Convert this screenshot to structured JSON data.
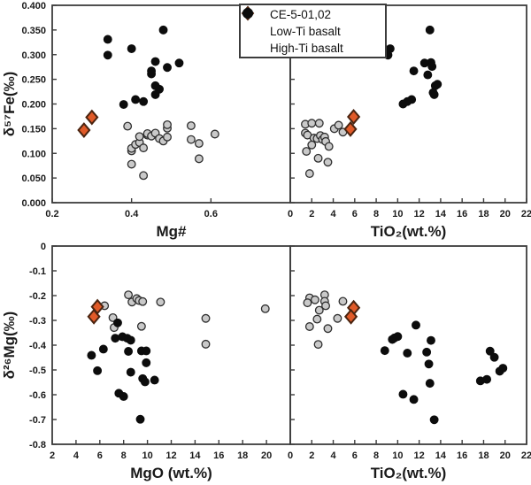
{
  "style": {
    "background": "#ffffff",
    "frame_color": "#3c3c3c",
    "text_color": "#1a1a1a"
  },
  "legend": {
    "items": [
      {
        "label": "CE-5-01,02",
        "marker": "diamond",
        "fill": "#e05a28",
        "stroke": "#4a2410"
      },
      {
        "label": "Low-Ti basalt",
        "marker": "circle",
        "fill": "#c9c9c9",
        "stroke": "#2e2e2e"
      },
      {
        "label": "High-Ti basalt",
        "marker": "circle",
        "fill": "#0c0c0c",
        "stroke": "#0c0c0c"
      }
    ]
  },
  "chart_data": [
    {
      "id": "top-left",
      "type": "scatter",
      "title": "",
      "xlabel": "Mg#",
      "ylabel": "δ⁵⁷Fe(‰)",
      "xlim": [
        0.2,
        0.8
      ],
      "ylim": [
        0,
        0.4
      ],
      "xticks": [
        0.2,
        0.4,
        0.6
      ],
      "xtick_labels": [
        "0.2",
        "0.4",
        "0.6"
      ],
      "yticks": [
        0,
        0.05,
        0.1,
        0.15,
        0.2,
        0.25,
        0.3,
        0.35,
        0.4
      ],
      "ytick_labels": [
        "0.000",
        "0.050",
        "0.100",
        "0.150",
        "0.200",
        "0.250",
        "0.300",
        "0.350",
        "0.400"
      ],
      "grid": false,
      "series": [
        {
          "name": "Low-Ti basalt",
          "marker": "circle",
          "points": [
            [
              0.39,
              0.155
            ],
            [
              0.4,
              0.105
            ],
            [
              0.4,
              0.11
            ],
            [
              0.41,
              0.118
            ],
            [
              0.42,
              0.122
            ],
            [
              0.42,
              0.134
            ],
            [
              0.43,
              0.111
            ],
            [
              0.44,
              0.137
            ],
            [
              0.44,
              0.14
            ],
            [
              0.45,
              0.135
            ],
            [
              0.46,
              0.141
            ],
            [
              0.47,
              0.13
            ],
            [
              0.48,
              0.125
            ],
            [
              0.49,
              0.133
            ],
            [
              0.49,
              0.151
            ],
            [
              0.49,
              0.158
            ],
            [
              0.55,
              0.156
            ],
            [
              0.55,
              0.128
            ],
            [
              0.57,
              0.12
            ],
            [
              0.57,
              0.089
            ],
            [
              0.61,
              0.139
            ],
            [
              0.4,
              0.078
            ],
            [
              0.43,
              0.055
            ]
          ]
        },
        {
          "name": "High-Ti basalt",
          "marker": "circle",
          "points": [
            [
              0.34,
              0.331
            ],
            [
              0.34,
              0.299
            ],
            [
              0.4,
              0.312
            ],
            [
              0.48,
              0.35
            ],
            [
              0.46,
              0.286
            ],
            [
              0.49,
              0.274
            ],
            [
              0.52,
              0.283
            ],
            [
              0.45,
              0.267
            ],
            [
              0.45,
              0.261
            ],
            [
              0.46,
              0.237
            ],
            [
              0.47,
              0.23
            ],
            [
              0.46,
              0.219
            ],
            [
              0.41,
              0.209
            ],
            [
              0.43,
              0.205
            ],
            [
              0.38,
              0.199
            ]
          ]
        },
        {
          "name": "CE-5-01,02",
          "marker": "diamond",
          "points": [
            [
              0.3,
              0.173
            ],
            [
              0.28,
              0.147
            ]
          ]
        }
      ]
    },
    {
      "id": "top-right",
      "type": "scatter",
      "title": "",
      "xlabel": "TiO₂(wt.%)",
      "ylabel": "",
      "xlim": [
        0,
        22
      ],
      "ylim": [
        0,
        0.4
      ],
      "xticks": [
        0,
        2,
        4,
        6,
        8,
        10,
        12,
        14,
        16,
        18,
        20,
        22
      ],
      "xtick_labels": [
        "0",
        "2",
        "4",
        "6",
        "8",
        "10",
        "12",
        "14",
        "16",
        "18",
        "20",
        "22"
      ],
      "yticks": [
        0,
        0.05,
        0.1,
        0.15,
        0.2,
        0.25,
        0.3,
        0.35,
        0.4
      ],
      "ytick_labels": [],
      "grid": false,
      "series": [
        {
          "name": "Low-Ti basalt",
          "marker": "circle",
          "points": [
            [
              1.4,
              0.159
            ],
            [
              2.0,
              0.161
            ],
            [
              2.7,
              0.161
            ],
            [
              4.1,
              0.15
            ],
            [
              4.5,
              0.157
            ],
            [
              4.9,
              0.143
            ],
            [
              1.4,
              0.141
            ],
            [
              1.6,
              0.137
            ],
            [
              2.2,
              0.131
            ],
            [
              2.5,
              0.13
            ],
            [
              2.8,
              0.136
            ],
            [
              3.0,
              0.128
            ],
            [
              3.2,
              0.133
            ],
            [
              3.3,
              0.124
            ],
            [
              3.6,
              0.114
            ],
            [
              2.0,
              0.117
            ],
            [
              1.5,
              0.104
            ],
            [
              2.6,
              0.09
            ],
            [
              3.5,
              0.082
            ],
            [
              1.8,
              0.059
            ]
          ]
        },
        {
          "name": "High-Ti basalt",
          "marker": "circle",
          "points": [
            [
              8.5,
              0.33
            ],
            [
              9.3,
              0.312
            ],
            [
              9.1,
              0.299
            ],
            [
              13.0,
              0.35
            ],
            [
              12.5,
              0.283
            ],
            [
              13.1,
              0.284
            ],
            [
              13.2,
              0.276
            ],
            [
              11.5,
              0.267
            ],
            [
              12.8,
              0.259
            ],
            [
              13.7,
              0.24
            ],
            [
              13.5,
              0.237
            ],
            [
              13.3,
              0.223
            ],
            [
              13.4,
              0.219
            ],
            [
              11.3,
              0.209
            ],
            [
              10.9,
              0.205
            ],
            [
              10.5,
              0.2
            ]
          ]
        },
        {
          "name": "CE-5-01,02",
          "marker": "diamond",
          "points": [
            [
              5.9,
              0.174
            ],
            [
              5.6,
              0.149
            ]
          ]
        }
      ]
    },
    {
      "id": "bottom-left",
      "type": "scatter",
      "title": "",
      "xlabel": "MgO (wt.%)",
      "ylabel": "δ²⁶Mg(‰)",
      "xlim": [
        2,
        22
      ],
      "ylim": [
        -0.8,
        0
      ],
      "xticks": [
        2,
        4,
        6,
        8,
        10,
        12,
        14,
        16,
        18,
        20
      ],
      "xtick_labels": [
        "2",
        "4",
        "6",
        "8",
        "10",
        "12",
        "14",
        "16",
        "18",
        "20"
      ],
      "yticks": [
        0,
        -0.1,
        -0.2,
        -0.3,
        -0.4,
        -0.5,
        -0.6,
        -0.7,
        -0.8
      ],
      "ytick_labels": [
        "0",
        "-0.1",
        "-0.2",
        "-0.3",
        "-0.4",
        "-0.5",
        "-0.6",
        "-0.7",
        "-0.8"
      ],
      "grid": false,
      "series": [
        {
          "name": "Low-Ti basalt",
          "marker": "circle",
          "points": [
            [
              6.4,
              -0.241
            ],
            [
              8.4,
              -0.197
            ],
            [
              8.7,
              -0.226
            ],
            [
              9.1,
              -0.212
            ],
            [
              9.3,
              -0.22
            ],
            [
              9.6,
              -0.224
            ],
            [
              11.1,
              -0.226
            ],
            [
              7.1,
              -0.289
            ],
            [
              7.2,
              -0.329
            ],
            [
              9.5,
              -0.324
            ],
            [
              14.9,
              -0.292
            ],
            [
              14.9,
              -0.396
            ],
            [
              19.9,
              -0.253
            ]
          ]
        },
        {
          "name": "High-Ti basalt",
          "marker": "circle",
          "points": [
            [
              7.5,
              -0.31
            ],
            [
              7.3,
              -0.372
            ],
            [
              7.9,
              -0.366
            ],
            [
              8.3,
              -0.372
            ],
            [
              8.6,
              -0.38
            ],
            [
              6.3,
              -0.416
            ],
            [
              5.3,
              -0.441
            ],
            [
              8.4,
              -0.425
            ],
            [
              9.5,
              -0.423
            ],
            [
              9.9,
              -0.423
            ],
            [
              9.9,
              -0.471
            ],
            [
              5.8,
              -0.503
            ],
            [
              8.6,
              -0.509
            ],
            [
              9.6,
              -0.535
            ],
            [
              9.8,
              -0.548
            ],
            [
              10.6,
              -0.541
            ],
            [
              7.6,
              -0.594
            ],
            [
              8.0,
              -0.607
            ],
            [
              9.4,
              -0.699
            ]
          ]
        },
        {
          "name": "CE-5-01,02",
          "marker": "diamond",
          "points": [
            [
              5.8,
              -0.245
            ],
            [
              5.5,
              -0.285
            ]
          ]
        }
      ]
    },
    {
      "id": "bottom-right",
      "type": "scatter",
      "title": "",
      "xlabel": "TiO₂(wt.%)",
      "ylabel": "",
      "xlim": [
        0,
        22
      ],
      "ylim": [
        -0.8,
        0
      ],
      "xticks": [
        0,
        2,
        4,
        6,
        8,
        10,
        12,
        14,
        16,
        18,
        20,
        22
      ],
      "xtick_labels": [
        "0",
        "2",
        "4",
        "6",
        "8",
        "10",
        "12",
        "14",
        "16",
        "18",
        "20",
        "22"
      ],
      "yticks": [
        0,
        -0.1,
        -0.2,
        -0.3,
        -0.4,
        -0.5,
        -0.6,
        -0.7,
        -0.8
      ],
      "ytick_labels": [],
      "grid": false,
      "series": [
        {
          "name": "Low-Ti basalt",
          "marker": "circle",
          "points": [
            [
              1.8,
              -0.209
            ],
            [
              1.6,
              -0.229
            ],
            [
              2.3,
              -0.217
            ],
            [
              3.2,
              -0.197
            ],
            [
              3.2,
              -0.223
            ],
            [
              3.3,
              -0.241
            ],
            [
              2.7,
              -0.259
            ],
            [
              2.5,
              -0.295
            ],
            [
              1.8,
              -0.325
            ],
            [
              3.5,
              -0.333
            ],
            [
              2.6,
              -0.397
            ],
            [
              4.9,
              -0.223
            ],
            [
              4.4,
              -0.292
            ]
          ]
        },
        {
          "name": "High-Ti basalt",
          "marker": "circle",
          "points": [
            [
              11.7,
              -0.319
            ],
            [
              9.5,
              -0.377
            ],
            [
              9.7,
              -0.371
            ],
            [
              10.0,
              -0.365
            ],
            [
              8.8,
              -0.422
            ],
            [
              10.9,
              -0.432
            ],
            [
              12.7,
              -0.428
            ],
            [
              13.1,
              -0.381
            ],
            [
              12.9,
              -0.476
            ],
            [
              13.0,
              -0.554
            ],
            [
              10.5,
              -0.598
            ],
            [
              11.5,
              -0.619
            ],
            [
              13.4,
              -0.701
            ],
            [
              17.7,
              -0.544
            ],
            [
              18.3,
              -0.538
            ],
            [
              18.6,
              -0.424
            ],
            [
              19.0,
              -0.449
            ],
            [
              19.5,
              -0.505
            ],
            [
              19.8,
              -0.493
            ]
          ]
        },
        {
          "name": "CE-5-01,02",
          "marker": "diamond",
          "points": [
            [
              5.9,
              -0.249
            ],
            [
              5.65,
              -0.285
            ]
          ]
        }
      ]
    }
  ]
}
